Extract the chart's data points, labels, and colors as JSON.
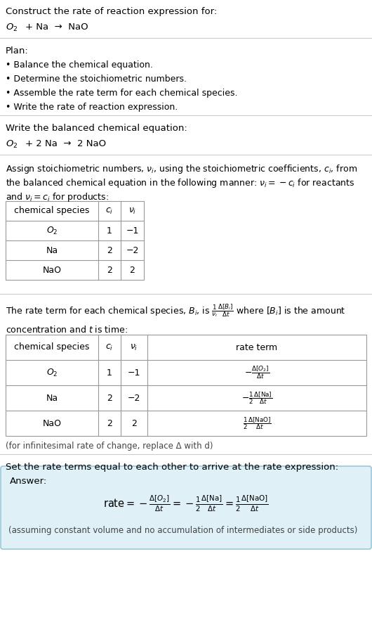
{
  "title_line1": "Construct the rate of reaction expression for:",
  "plan_header": "Plan:",
  "plan_bullets": [
    "• Balance the chemical equation.",
    "• Determine the stoichiometric numbers.",
    "• Assemble the rate term for each chemical species.",
    "• Write the rate of reaction expression."
  ],
  "balanced_header": "Write the balanced chemical equation:",
  "assign_line1": "Assign stoichiometric numbers, $\\nu_i$, using the stoichiometric coefficients, $c_i$, from",
  "assign_line2": "the balanced chemical equation in the following manner: $\\nu_i = -c_i$ for reactants",
  "assign_line3": "and $\\nu_i = c_i$ for products:",
  "table1_col_headers": [
    "chemical species",
    "$c_i$",
    "$\\nu_i$"
  ],
  "table1_rows": [
    [
      "$O_2$",
      "1",
      "−1"
    ],
    [
      "Na",
      "2",
      "−2"
    ],
    [
      "NaO",
      "2",
      "2"
    ]
  ],
  "rate_line1": "The rate term for each chemical species, $B_i$, is $\\frac{1}{\\nu_i}\\frac{\\Delta[B_i]}{\\Delta t}$ where $[B_i]$ is the amount",
  "rate_line2": "concentration and $t$ is time:",
  "table2_col_headers": [
    "chemical species",
    "$c_i$",
    "$\\nu_i$",
    "rate term"
  ],
  "table2_rows": [
    [
      "$O_2$",
      "1",
      "−1"
    ],
    [
      "Na",
      "2",
      "−2"
    ],
    [
      "NaO",
      "2",
      "2"
    ]
  ],
  "table2_rates": [
    "$-\\frac{\\Delta[O_2]}{\\Delta t}$",
    "$-\\frac{1}{2}\\frac{\\Delta[\\mathrm{Na}]}{\\Delta t}$",
    "$\\frac{1}{2}\\frac{\\Delta[\\mathrm{NaO}]}{\\Delta t}$"
  ],
  "infinitesimal_note": "(for infinitesimal rate of change, replace Δ with d)",
  "set_rate_text": "Set the rate terms equal to each other to arrive at the rate expression:",
  "answer_label": "Answer:",
  "answer_rate": "$\\mathrm{rate} = -\\frac{\\Delta[O_2]}{\\Delta t} = -\\frac{1}{2}\\frac{\\Delta[\\mathrm{Na}]}{\\Delta t} = \\frac{1}{2}\\frac{\\Delta[\\mathrm{NaO}]}{\\Delta t}$",
  "answer_box_color": "#dff0f7",
  "answer_box_border": "#8bbfd4",
  "assuming_note": "(assuming constant volume and no accumulation of intermediates or side products)",
  "bg_color": "#ffffff",
  "separator_color": "#cccccc",
  "table_border_color": "#999999"
}
